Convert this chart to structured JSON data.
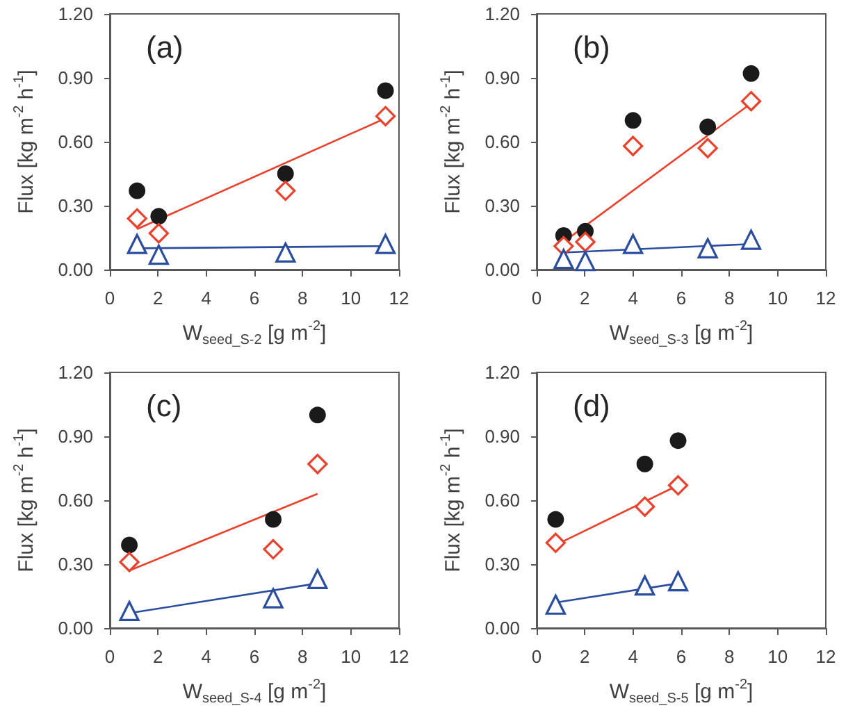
{
  "chart_data": [
    {
      "type": "scatter",
      "title": "(a)",
      "xlabel": "W$_{seed_S-2}$ [g m$^{-2}$]",
      "ylabel": "Flux [kg m$^{-2}$ h$^{-1}$]",
      "xlim": [
        0,
        12
      ],
      "xticks": [
        0,
        2,
        4,
        6,
        8,
        10,
        12
      ],
      "ylim": [
        0,
        1.2
      ],
      "yticks": [
        {
          "value": 0,
          "label": "0.00"
        },
        {
          "value": 0.3,
          "label": "0.30"
        },
        {
          "value": 0.6,
          "label": "0.60"
        },
        {
          "value": 0.9,
          "label": "0.90"
        },
        {
          "value": 1.2,
          "label": "1.20"
        }
      ],
      "grid": false,
      "series": [
        {
          "color": "#1a1a1a",
          "marker": "circle",
          "x": [
            1.13,
            2.03,
            7.29,
            11.44
          ],
          "values": [
            0.37,
            0.25,
            0.45,
            0.84
          ]
        },
        {
          "color": "#e8412c",
          "marker": "diamond",
          "x": [
            1.13,
            2.03,
            7.29,
            11.44
          ],
          "values": [
            0.24,
            0.17,
            0.37,
            0.72
          ]
        },
        {
          "color": "#2a4d9e",
          "marker": "triangle",
          "x": [
            1.13,
            2.03,
            7.29,
            11.44
          ],
          "values": [
            0.12,
            0.07,
            0.08,
            0.12
          ]
        },
        {
          "type": "line",
          "color": "#e8412c",
          "line_style": "solid",
          "x": [
            1.13,
            11.44
          ],
          "values": [
            0.19,
            0.71
          ]
        },
        {
          "type": "line",
          "color": "#2a4d9e",
          "line_style": "solid",
          "x": [
            1.13,
            11.44
          ],
          "values": [
            0.1,
            0.11
          ]
        }
      ]
    },
    {
      "type": "scatter",
      "title": "(b)",
      "xlabel": "W$_{seed_S-3}$ [g m$^{-2}$]",
      "ylabel": "Flux [kg m$^{-2}$ h$^{-1}$]",
      "xlim": [
        0,
        12
      ],
      "xticks": [
        0,
        2,
        4,
        6,
        8,
        10,
        12
      ],
      "ylim": [
        0,
        1.2
      ],
      "yticks": [
        {
          "value": 0,
          "label": "0.00"
        },
        {
          "value": 0.3,
          "label": "0.30"
        },
        {
          "value": 0.6,
          "label": "0.60"
        },
        {
          "value": 0.9,
          "label": "0.90"
        },
        {
          "value": 1.2,
          "label": "1.20"
        }
      ],
      "grid": false,
      "series": [
        {
          "color": "#1a1a1a",
          "marker": "circle",
          "x": [
            1.12,
            2.02,
            4.0,
            7.1,
            8.9
          ],
          "values": [
            0.16,
            0.18,
            0.7,
            0.67,
            0.92
          ]
        },
        {
          "color": "#e8412c",
          "marker": "diamond",
          "x": [
            1.12,
            2.02,
            4.0,
            7.1,
            8.9
          ],
          "values": [
            0.11,
            0.13,
            0.58,
            0.57,
            0.79
          ]
        },
        {
          "color": "#2a4d9e",
          "marker": "triangle",
          "x": [
            1.12,
            2.02,
            4.0,
            7.1,
            8.9
          ],
          "values": [
            0.05,
            0.04,
            0.12,
            0.1,
            0.14
          ]
        },
        {
          "type": "line",
          "color": "#e8412c",
          "line_style": "solid",
          "x": [
            1.12,
            8.9
          ],
          "values": [
            0.13,
            0.78
          ]
        },
        {
          "type": "line",
          "color": "#2a4d9e",
          "line_style": "solid",
          "x": [
            1.12,
            8.9
          ],
          "values": [
            0.08,
            0.12
          ]
        }
      ]
    },
    {
      "type": "scatter",
      "title": "(c)",
      "xlabel": "W$_{seed_S-4}$ [g m$^{-2}$]",
      "ylabel": "Flux [kg m$^{-2}$ h$^{-1}$]",
      "xlim": [
        0,
        12
      ],
      "xticks": [
        0,
        2,
        4,
        6,
        8,
        10,
        12
      ],
      "ylim": [
        0,
        1.2
      ],
      "yticks": [
        {
          "value": 0,
          "label": "0.00"
        },
        {
          "value": 0.3,
          "label": "0.30"
        },
        {
          "value": 0.6,
          "label": "0.60"
        },
        {
          "value": 0.9,
          "label": "0.90"
        },
        {
          "value": 1.2,
          "label": "1.20"
        }
      ],
      "grid": false,
      "series": [
        {
          "color": "#1a1a1a",
          "marker": "circle",
          "x": [
            0.81,
            6.78,
            8.62
          ],
          "values": [
            0.39,
            0.51,
            1.0
          ]
        },
        {
          "color": "#e8412c",
          "marker": "diamond",
          "x": [
            0.81,
            6.78,
            8.62
          ],
          "values": [
            0.31,
            0.37,
            0.77
          ]
        },
        {
          "color": "#2a4d9e",
          "marker": "triangle",
          "x": [
            0.81,
            6.78,
            8.62
          ],
          "values": [
            0.08,
            0.14,
            0.23
          ]
        },
        {
          "type": "line",
          "color": "#e8412c",
          "line_style": "solid",
          "x": [
            0.81,
            8.62
          ],
          "values": [
            0.27,
            0.63
          ]
        },
        {
          "type": "line",
          "color": "#2a4d9e",
          "line_style": "solid",
          "x": [
            0.81,
            8.62
          ],
          "values": [
            0.07,
            0.21
          ]
        }
      ]
    },
    {
      "type": "scatter",
      "title": "(d)",
      "xlabel": "W$_{seed_S-5}$ [g m$^{-2}$]",
      "ylabel": "Flux [kg m$^{-2}$ h$^{-1}$]",
      "xlim": [
        0,
        12
      ],
      "xticks": [
        0,
        2,
        4,
        6,
        8,
        10,
        12
      ],
      "ylim": [
        0,
        1.2
      ],
      "yticks": [
        {
          "value": 0,
          "label": "0.00"
        },
        {
          "value": 0.3,
          "label": "0.30"
        },
        {
          "value": 0.6,
          "label": "0.60"
        },
        {
          "value": 0.9,
          "label": "0.90"
        },
        {
          "value": 1.2,
          "label": "1.20"
        }
      ],
      "grid": false,
      "series": [
        {
          "color": "#1a1a1a",
          "marker": "circle",
          "x": [
            0.79,
            4.49,
            5.87
          ],
          "values": [
            0.51,
            0.77,
            0.88
          ]
        },
        {
          "color": "#e8412c",
          "marker": "diamond",
          "x": [
            0.79,
            4.49,
            5.87
          ],
          "values": [
            0.4,
            0.57,
            0.67
          ]
        },
        {
          "color": "#2a4d9e",
          "marker": "triangle",
          "x": [
            0.79,
            4.49,
            5.87
          ],
          "values": [
            0.11,
            0.2,
            0.22
          ]
        },
        {
          "type": "line",
          "color": "#e8412c",
          "line_style": "solid",
          "x": [
            0.79,
            5.87
          ],
          "values": [
            0.39,
            0.67
          ]
        },
        {
          "type": "line",
          "color": "#2a4d9e",
          "line_style": "solid",
          "x": [
            0.79,
            5.87
          ],
          "values": [
            0.12,
            0.21
          ]
        }
      ]
    }
  ]
}
